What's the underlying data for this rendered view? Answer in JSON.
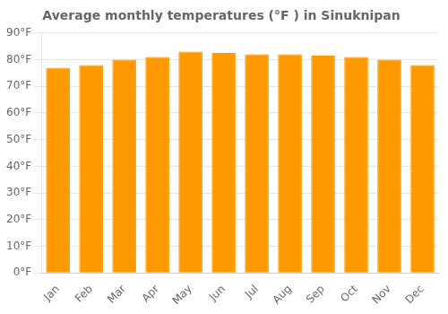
{
  "chart_data": {
    "type": "bar",
    "title": "Average monthly temperatures (°F ) in Sinuknipan",
    "categories": [
      "Jan",
      "Feb",
      "Mar",
      "Apr",
      "May",
      "Jun",
      "Jul",
      "Aug",
      "Sep",
      "Oct",
      "Nov",
      "Dec"
    ],
    "values": [
      77,
      78,
      80,
      81,
      83,
      82.5,
      82,
      82,
      81.5,
      81,
      80,
      78
    ],
    "color": "#ff9900",
    "ylim": [
      0,
      90
    ],
    "yticks": [
      {
        "value": 0,
        "label": "0°F"
      },
      {
        "value": 10,
        "label": "10°F"
      },
      {
        "value": 20,
        "label": "20°F"
      },
      {
        "value": 30,
        "label": "30°F"
      },
      {
        "value": 40,
        "label": "40°F"
      },
      {
        "value": 50,
        "label": "50°F"
      },
      {
        "value": 60,
        "label": "60°F"
      },
      {
        "value": 70,
        "label": "70°F"
      },
      {
        "value": 80,
        "label": "80°F"
      },
      {
        "value": 90,
        "label": "90°F"
      }
    ],
    "grid": true
  }
}
